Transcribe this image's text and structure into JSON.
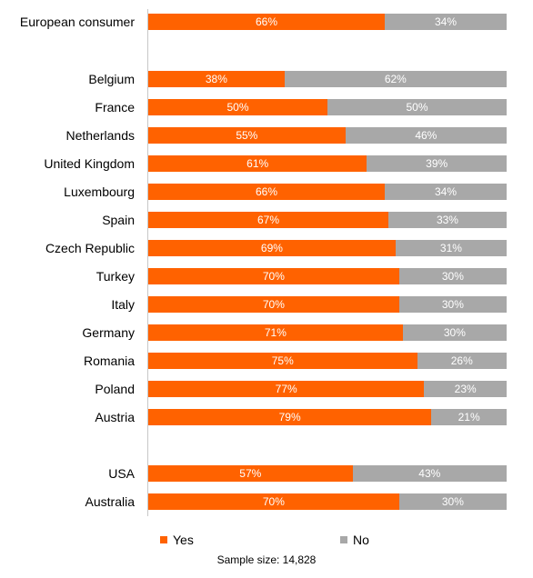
{
  "chart_data": {
    "type": "bar",
    "orientation": "horizontal",
    "stacked": true,
    "categories": [
      "European consumer",
      "Belgium",
      "France",
      "Netherlands",
      "United Kingdom",
      "Luxembourg",
      "Spain",
      "Czech Republic",
      "Turkey",
      "Italy",
      "Germany",
      "Romania",
      "Poland",
      "Austria",
      "USA",
      "Australia"
    ],
    "series": [
      {
        "name": "Yes",
        "color": "#ff6200",
        "values": [
          66,
          38,
          50,
          55,
          61,
          66,
          67,
          69,
          70,
          70,
          71,
          75,
          77,
          79,
          57,
          70
        ],
        "labels": [
          "66%",
          "38%",
          "50%",
          "55%",
          "61%",
          "66%",
          "67%",
          "69%",
          "70%",
          "70%",
          "71%",
          "75%",
          "77%",
          "79%",
          "57%",
          "70%"
        ]
      },
      {
        "name": "No",
        "color": "#a8a8a8",
        "values": [
          34,
          62,
          50,
          46,
          39,
          34,
          33,
          31,
          30,
          30,
          30,
          26,
          23,
          21,
          43,
          30
        ],
        "labels": [
          "34%",
          "62%",
          "50%",
          "46%",
          "39%",
          "34%",
          "33%",
          "31%",
          "30%",
          "30%",
          "30%",
          "26%",
          "23%",
          "21%",
          "43%",
          "30%"
        ]
      }
    ],
    "xlim": [
      0,
      100
    ],
    "legend_position": "bottom",
    "grid": false,
    "note": "Sample size: 14,828"
  }
}
